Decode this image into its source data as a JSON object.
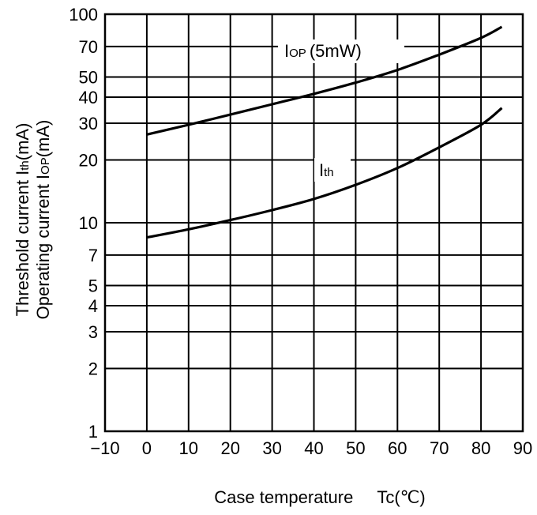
{
  "chart_data": {
    "type": "line",
    "xlabel": "Case temperature",
    "xlabel_symbol": "Tc",
    "xlabel_unit": "(℃)",
    "ylabel_line1": {
      "prefix": "Threshold current ",
      "symbol": "I",
      "sub": "th",
      "unit": "(mA)"
    },
    "ylabel_line2": {
      "prefix": "Operating current ",
      "symbol": "I",
      "sub": "OP",
      "unit": "(mA)"
    },
    "xlim": [
      -10,
      90
    ],
    "ylim": [
      1,
      100
    ],
    "yscale": "log",
    "grid": true,
    "x_ticks": [
      -10,
      0,
      10,
      20,
      30,
      40,
      50,
      60,
      70,
      80,
      90
    ],
    "x_tick_labels": [
      "−10",
      "0",
      "10",
      "20",
      "30",
      "40",
      "50",
      "60",
      "70",
      "80",
      "90"
    ],
    "y_ticks": [
      1,
      2,
      3,
      4,
      5,
      7,
      10,
      20,
      30,
      40,
      50,
      70,
      100
    ],
    "y_tick_labels": [
      "1",
      "2",
      "3",
      "4",
      "5",
      "7",
      "10",
      "20",
      "30",
      "40",
      "50",
      "70",
      "100"
    ],
    "series": [
      {
        "name": "IOP (5mW)",
        "label_symbol": "I",
        "label_sub": "OP",
        "label_suffix": "(5mW)",
        "x": [
          0,
          10,
          20,
          30,
          40,
          50,
          60,
          70,
          80,
          85
        ],
        "y": [
          26.5,
          29.5,
          33,
          37,
          41.5,
          47,
          54,
          64,
          77,
          87
        ]
      },
      {
        "name": "Ith",
        "label_symbol": "I",
        "label_sub": "th",
        "label_suffix": "",
        "x": [
          0,
          10,
          20,
          30,
          40,
          50,
          60,
          70,
          80,
          85
        ],
        "y": [
          8.5,
          9.3,
          10.3,
          11.5,
          13.0,
          15.2,
          18.3,
          23.0,
          29.5,
          35.5
        ]
      }
    ]
  }
}
